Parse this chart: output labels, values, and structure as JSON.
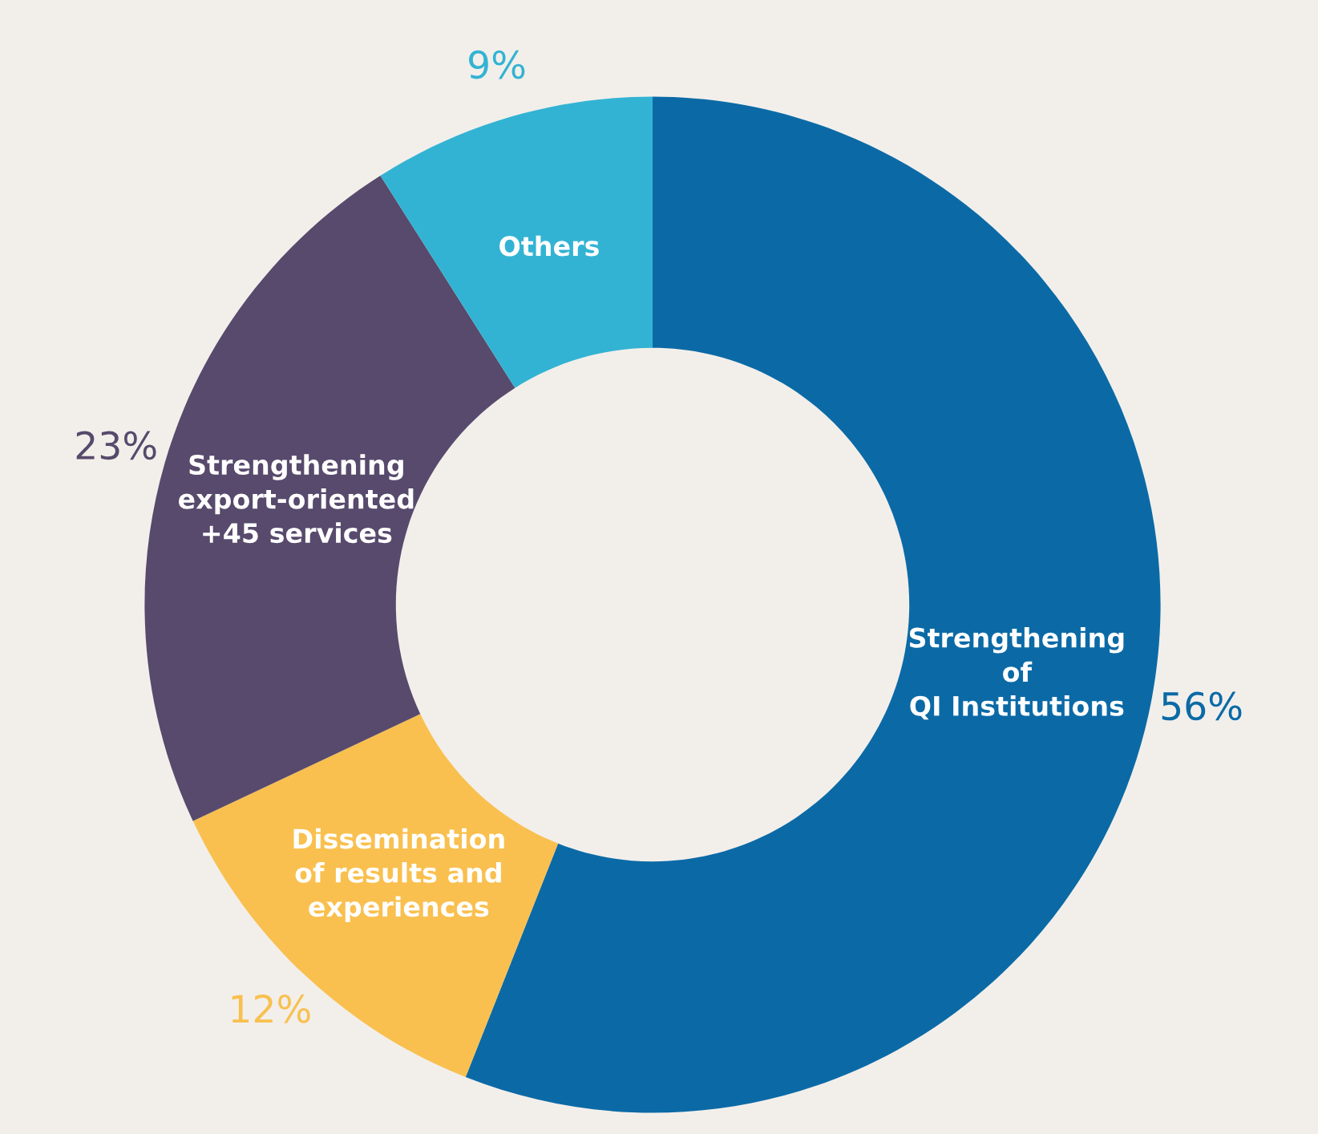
{
  "chart_data": {
    "type": "donut",
    "categories": [
      "Strengthening\nof\nQI Institutions",
      "Dissemination\nof results and\nexperiences",
      "Strengthening\nexport-oriented\n+45 services",
      "Others"
    ],
    "values": [
      56,
      12,
      23,
      9
    ],
    "colors": [
      "#0b6aa6",
      "#f9c04f",
      "#574a6c",
      "#33b3d3"
    ],
    "value_labels": [
      "56%",
      "12%",
      "23%",
      "9%"
    ],
    "legend": false
  }
}
